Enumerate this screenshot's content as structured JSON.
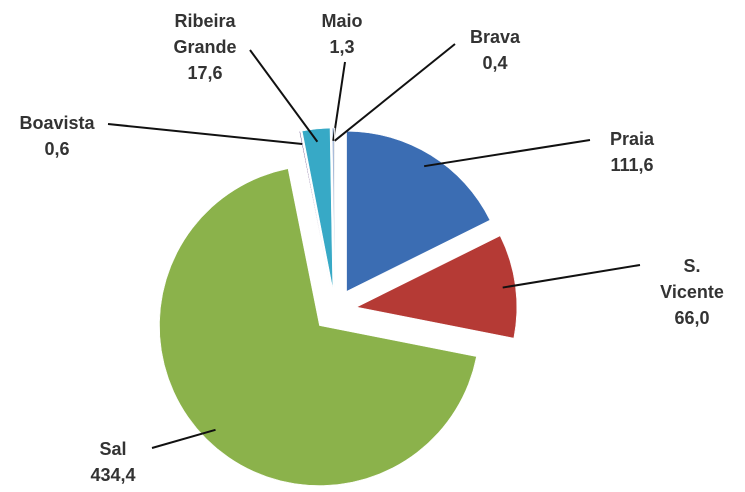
{
  "chart_data": {
    "type": "pie",
    "categories": [
      "Praia",
      "S. Vicente",
      "Sal",
      "Boavista",
      "Ribeira Grande",
      "Maio",
      "Brava"
    ],
    "values": [
      111.6,
      66.0,
      434.4,
      0.6,
      17.6,
      1.3,
      0.4
    ],
    "value_labels": [
      "111,6",
      "66,0",
      "434,4",
      "0,6",
      "17,6",
      "1,3",
      "0,4"
    ],
    "colors": [
      "#3b6db3",
      "#b53a35",
      "#8bb24b",
      "#5b3f7e",
      "#37a9c6",
      "#a8bbd9",
      "#9a9a9a"
    ]
  }
}
